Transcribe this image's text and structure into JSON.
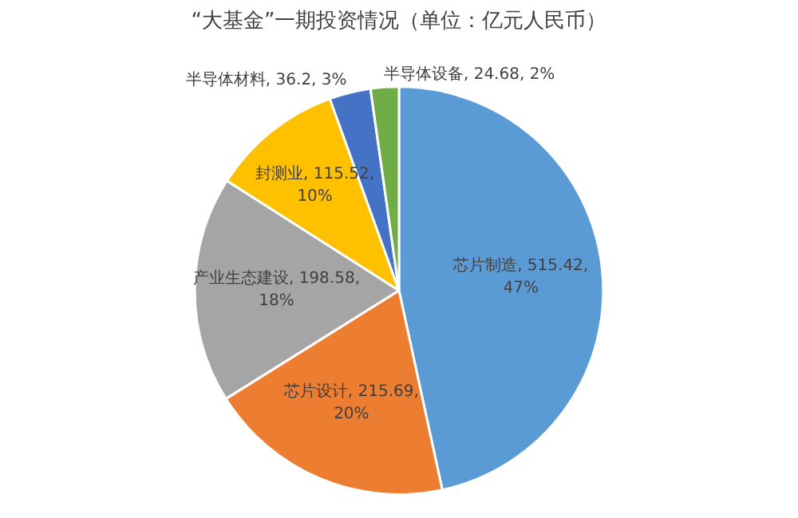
{
  "chart_data": {
    "type": "pie",
    "title": "“大基金”一期投资情况（单位：亿元人民币）",
    "categories": [
      "芯片制造",
      "芯片设计",
      "产业生态建设",
      "封测业",
      "半导体材料",
      "半导体设备"
    ],
    "values": [
      515.42,
      215.69,
      198.58,
      115.52,
      36.2,
      24.68
    ],
    "value_labels": [
      "515.42, 47%",
      "215.69, 20%",
      "198.58, 18%",
      "115.52, 10%",
      "36.2, 3%",
      "24.68, 2%"
    ],
    "colors": [
      "#5b9bd5",
      "#ed7d31",
      "#a5a5a5",
      "#ffc000",
      "#4472c4",
      "#70ad47"
    ],
    "legend": false
  }
}
